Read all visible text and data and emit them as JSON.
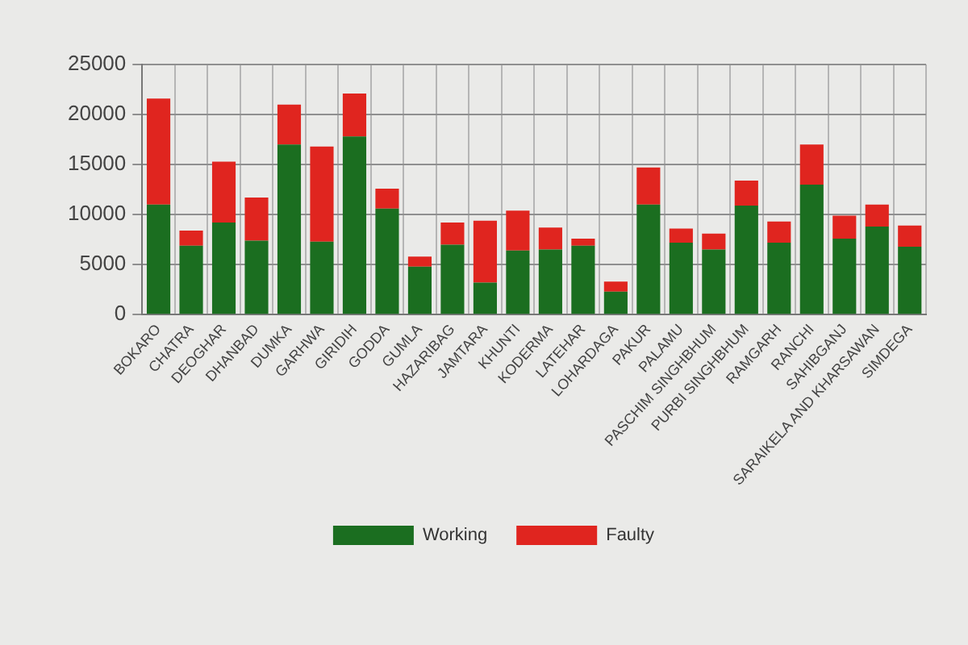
{
  "chart_data": {
    "type": "bar",
    "stacked": true,
    "categories": [
      "BOKARO",
      "CHATRA",
      "DEOGHAR",
      "DHANBAD",
      "DUMKA",
      "GARHWA",
      "GIRIDIH",
      "GODDA",
      "GUMLA",
      "HAZARIBAG",
      "JAMTARA",
      "KHUNTI",
      "KODERMA",
      "LATEHAR",
      "LOHARDAGA",
      "PAKUR",
      "PALAMU",
      "PASCHIM SINGHBHUM",
      "PURBI SINGHBHUM",
      "RAMGARH",
      "RANCHI",
      "SAHIBGANJ",
      "SARAIKELA AND KHARSAWAN",
      "SIMDEGA"
    ],
    "series": [
      {
        "name": "Working",
        "color": "#1b6e20",
        "values": [
          11000,
          6900,
          9200,
          7400,
          17000,
          7300,
          17800,
          10600,
          4800,
          7000,
          3200,
          6400,
          6500,
          6900,
          2300,
          11000,
          7200,
          6500,
          10900,
          7200,
          13000,
          7600,
          8800,
          6800
        ]
      },
      {
        "name": "Faulty",
        "color": "#e0251f",
        "values": [
          10600,
          1500,
          6100,
          4300,
          4000,
          9500,
          4300,
          2000,
          1000,
          2200,
          6200,
          4000,
          2200,
          700,
          1000,
          3700,
          1400,
          1600,
          2500,
          2100,
          4000,
          2300,
          2200,
          2100
        ]
      }
    ],
    "ylim": [
      0,
      25000
    ],
    "yticks": [
      0,
      5000,
      10000,
      15000,
      20000,
      25000
    ],
    "grid": true,
    "legend": "bottom"
  }
}
